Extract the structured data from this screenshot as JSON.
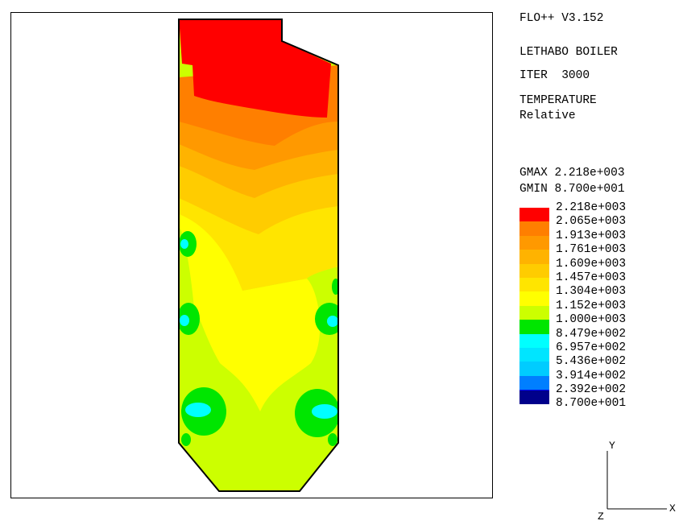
{
  "header": {
    "software": "FLO++ V3.152",
    "case": "LETHABO BOILER",
    "iteration": "ITER  3000",
    "variable": "TEMPERATURE",
    "mode": "Relative"
  },
  "range": {
    "gmax": "GMAX 2.218e+003",
    "gmin": "GMIN 8.700e+001"
  },
  "legend": {
    "levels": [
      {
        "label": "2.218e+003",
        "color": "#ff0000"
      },
      {
        "label": "2.065e+003",
        "color": "#ff7f00"
      },
      {
        "label": "1.913e+003",
        "color": "#ff9900"
      },
      {
        "label": "1.761e+003",
        "color": "#ffb300"
      },
      {
        "label": "1.609e+003",
        "color": "#ffcc00"
      },
      {
        "label": "1.457e+003",
        "color": "#ffe500"
      },
      {
        "label": "1.304e+003",
        "color": "#ffff00"
      },
      {
        "label": "1.152e+003",
        "color": "#ccff00"
      },
      {
        "label": "1.000e+003",
        "color": "#00e600"
      },
      {
        "label": "8.479e+002",
        "color": "#00ffff"
      },
      {
        "label": "6.957e+002",
        "color": "#00e5ff"
      },
      {
        "label": "5.436e+002",
        "color": "#00ccff"
      },
      {
        "label": "3.914e+002",
        "color": "#007fff"
      },
      {
        "label": "2.392e+002",
        "color": "#0000ff"
      },
      {
        "label": "8.700e+001",
        "color": "#00008b"
      }
    ]
  },
  "axes": {
    "y": "Y",
    "x": "X",
    "z": "Z"
  }
}
